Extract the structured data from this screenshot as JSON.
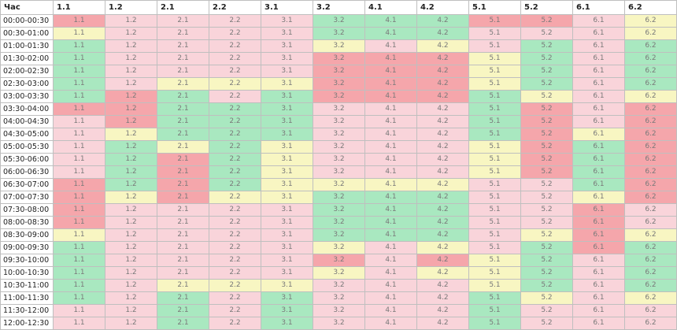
{
  "colors": {
    "g": "#a9e8c0",
    "p": "#f9d4da",
    "r": "#f5a6ab",
    "y": "#f8f6c2"
  },
  "header": [
    "Час",
    "1.1",
    "1.2",
    "2.1",
    "2.2",
    "3.1",
    "3.2",
    "4.1",
    "4.2",
    "5.1",
    "5.2",
    "6.1",
    "6.2"
  ],
  "rows": [
    {
      "time": "00:00-00:30",
      "status": [
        "r",
        "p",
        "p",
        "p",
        "p",
        "g",
        "g",
        "g",
        "r",
        "r",
        "p",
        "y"
      ]
    },
    {
      "time": "00:30-01:00",
      "status": [
        "y",
        "p",
        "p",
        "p",
        "p",
        "g",
        "g",
        "g",
        "p",
        "p",
        "p",
        "y"
      ]
    },
    {
      "time": "01:00-01:30",
      "status": [
        "g",
        "p",
        "p",
        "p",
        "p",
        "y",
        "p",
        "y",
        "p",
        "g",
        "p",
        "g"
      ]
    },
    {
      "time": "01:30-02:00",
      "status": [
        "g",
        "p",
        "p",
        "p",
        "p",
        "r",
        "r",
        "r",
        "y",
        "g",
        "p",
        "g"
      ]
    },
    {
      "time": "02:00-02:30",
      "status": [
        "g",
        "p",
        "p",
        "p",
        "p",
        "r",
        "r",
        "r",
        "y",
        "g",
        "p",
        "g"
      ]
    },
    {
      "time": "02:30-03:00",
      "status": [
        "g",
        "p",
        "y",
        "y",
        "y",
        "r",
        "r",
        "r",
        "y",
        "g",
        "p",
        "g"
      ]
    },
    {
      "time": "03:00-03:30",
      "status": [
        "g",
        "r",
        "g",
        "p",
        "g",
        "r",
        "r",
        "r",
        "g",
        "y",
        "p",
        "y"
      ]
    },
    {
      "time": "03:30-04:00",
      "status": [
        "r",
        "r",
        "g",
        "g",
        "g",
        "p",
        "p",
        "p",
        "g",
        "r",
        "p",
        "r"
      ]
    },
    {
      "time": "04:00-04:30",
      "status": [
        "p",
        "r",
        "g",
        "g",
        "g",
        "p",
        "p",
        "p",
        "g",
        "r",
        "p",
        "r"
      ]
    },
    {
      "time": "04:30-05:00",
      "status": [
        "p",
        "y",
        "g",
        "g",
        "g",
        "p",
        "p",
        "p",
        "g",
        "r",
        "y",
        "r"
      ]
    },
    {
      "time": "05:00-05:30",
      "status": [
        "p",
        "g",
        "y",
        "g",
        "y",
        "p",
        "p",
        "p",
        "y",
        "r",
        "g",
        "r"
      ]
    },
    {
      "time": "05:30-06:00",
      "status": [
        "p",
        "g",
        "r",
        "g",
        "y",
        "p",
        "p",
        "p",
        "y",
        "r",
        "g",
        "r"
      ]
    },
    {
      "time": "06:00-06:30",
      "status": [
        "p",
        "g",
        "r",
        "g",
        "y",
        "p",
        "p",
        "p",
        "y",
        "r",
        "g",
        "r"
      ]
    },
    {
      "time": "06:30-07:00",
      "status": [
        "r",
        "g",
        "r",
        "g",
        "y",
        "y",
        "y",
        "y",
        "p",
        "p",
        "g",
        "r"
      ]
    },
    {
      "time": "07:00-07:30",
      "status": [
        "r",
        "y",
        "r",
        "y",
        "y",
        "g",
        "g",
        "g",
        "p",
        "p",
        "y",
        "r"
      ]
    },
    {
      "time": "07:30-08:00",
      "status": [
        "r",
        "p",
        "p",
        "p",
        "p",
        "g",
        "g",
        "g",
        "p",
        "p",
        "r",
        "p"
      ]
    },
    {
      "time": "08:00-08:30",
      "status": [
        "r",
        "p",
        "p",
        "p",
        "p",
        "g",
        "g",
        "g",
        "p",
        "p",
        "r",
        "p"
      ]
    },
    {
      "time": "08:30-09:00",
      "status": [
        "y",
        "p",
        "p",
        "p",
        "p",
        "g",
        "g",
        "g",
        "p",
        "y",
        "r",
        "y"
      ]
    },
    {
      "time": "09:00-09:30",
      "status": [
        "g",
        "p",
        "p",
        "p",
        "p",
        "y",
        "p",
        "y",
        "p",
        "g",
        "r",
        "g"
      ]
    },
    {
      "time": "09:30-10:00",
      "status": [
        "g",
        "p",
        "p",
        "p",
        "p",
        "r",
        "p",
        "r",
        "y",
        "g",
        "p",
        "g"
      ]
    },
    {
      "time": "10:00-10:30",
      "status": [
        "g",
        "p",
        "p",
        "p",
        "p",
        "y",
        "p",
        "y",
        "y",
        "g",
        "p",
        "g"
      ]
    },
    {
      "time": "10:30-11:00",
      "status": [
        "g",
        "p",
        "y",
        "y",
        "y",
        "p",
        "p",
        "p",
        "y",
        "g",
        "p",
        "g"
      ]
    },
    {
      "time": "11:00-11:30",
      "status": [
        "g",
        "p",
        "g",
        "p",
        "g",
        "p",
        "p",
        "p",
        "g",
        "y",
        "p",
        "y"
      ]
    },
    {
      "time": "11:30-12:00",
      "status": [
        "p",
        "p",
        "g",
        "p",
        "g",
        "p",
        "p",
        "p",
        "g",
        "p",
        "p",
        "p"
      ]
    },
    {
      "time": "12:00-12:30",
      "status": [
        "p",
        "p",
        "g",
        "p",
        "g",
        "p",
        "p",
        "p",
        "g",
        "p",
        "p",
        "p"
      ]
    }
  ]
}
